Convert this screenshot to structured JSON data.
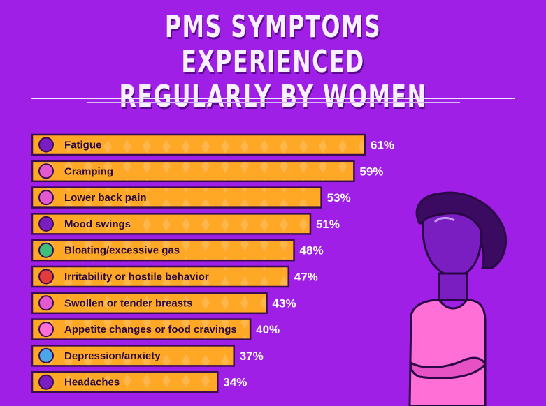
{
  "title_line1": "PMS SYMPTOMS EXPERIENCED",
  "title_line2": "REGULARLY BY WOMEN",
  "colors": {
    "background": "#a01fe6",
    "bar_fill": "#ffa826",
    "bar_border": "#3a0d52",
    "value_text": "#ffffff",
    "figure_skin": "#7a1ec2",
    "figure_hair": "#3b0b62",
    "figure_shirt": "#ff6fd6"
  },
  "chart_data": {
    "type": "bar",
    "orientation": "horizontal",
    "title": "PMS SYMPTOMS EXPERIENCED REGULARLY BY WOMEN",
    "categories": [
      "Fatigue",
      "Cramping",
      "Lower back pain",
      "Mood swings",
      "Bloating/excessive gas",
      "Irritability or hostile behavior",
      "Swollen or tender breasts",
      "Appetite changes or food cravings",
      "Depression/anxiety",
      "Headaches"
    ],
    "values": [
      61,
      59,
      53,
      51,
      48,
      47,
      43,
      40,
      37,
      34
    ],
    "value_labels": [
      "61%",
      "59%",
      "53%",
      "51%",
      "48%",
      "47%",
      "43%",
      "40%",
      "37%",
      "34%"
    ],
    "icons": [
      "sleepy-face-icon",
      "cramping-icon",
      "back-pain-icon",
      "mood-swings-icon",
      "bloating-icon",
      "angry-face-icon",
      "sore-breast-icon",
      "cupcake-icon",
      "sad-face-icon",
      "headache-icon"
    ],
    "unit": "%",
    "xlim": [
      0,
      61
    ],
    "grid": false,
    "legend": "none"
  }
}
